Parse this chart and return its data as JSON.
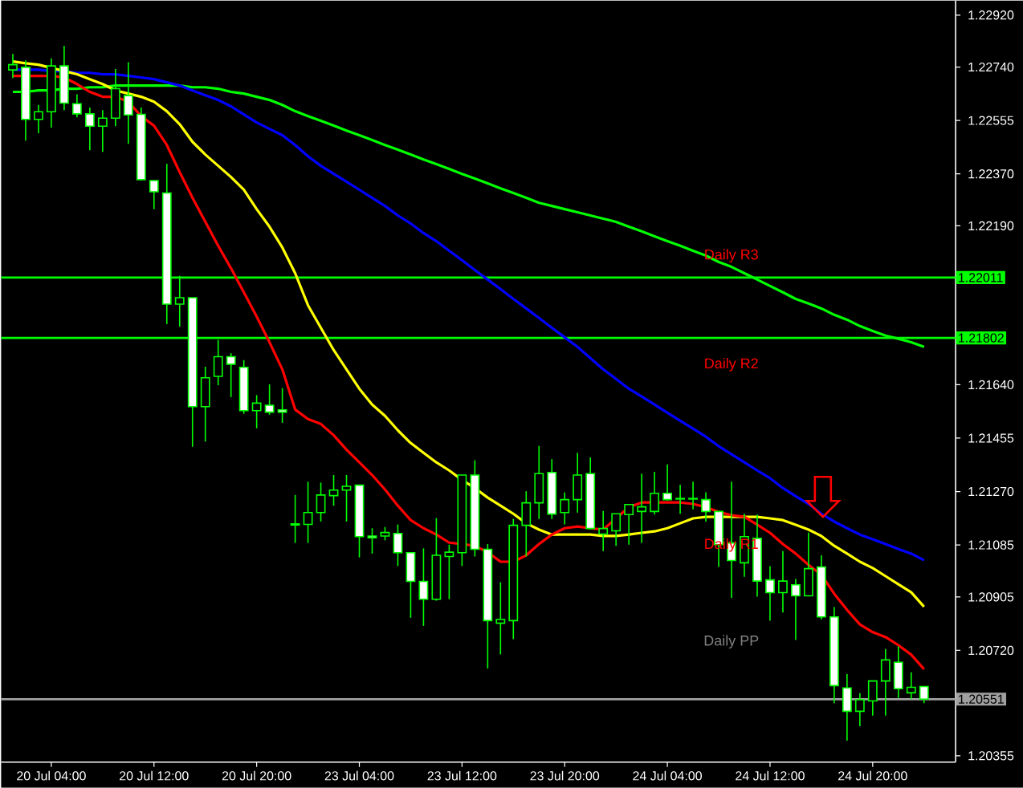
{
  "chart_data": {
    "type": "candlestick",
    "categories": [
      null,
      null,
      null,
      "20 Jul 04:00",
      null,
      null,
      null,
      null,
      null,
      null,
      null,
      "20 Jul 12:00",
      null,
      null,
      null,
      null,
      null,
      null,
      null,
      "20 Jul 20:00",
      null,
      null,
      null,
      null,
      null,
      null,
      null,
      "23 Jul 04:00",
      null,
      null,
      null,
      null,
      null,
      null,
      null,
      "23 Jul 12:00",
      null,
      null,
      null,
      null,
      null,
      null,
      null,
      "23 Jul 20:00",
      null,
      null,
      null,
      null,
      null,
      null,
      null,
      "24 Jul 04:00",
      null,
      null,
      null,
      null,
      null,
      null,
      null,
      "24 Jul 12:00",
      null,
      null,
      null,
      null,
      null,
      null,
      null,
      "24 Jul 20:00",
      null,
      null,
      null,
      null
    ],
    "ohlc": [
      [
        1.2273,
        1.22785,
        1.22702,
        1.22748
      ],
      [
        1.22739,
        1.22763,
        1.22485,
        1.22559
      ],
      [
        1.22559,
        1.22609,
        1.22511,
        1.22585
      ],
      [
        1.22585,
        1.2277,
        1.2253,
        1.22744
      ],
      [
        1.22744,
        1.22813,
        1.22591,
        1.22615
      ],
      [
        1.22613,
        1.22646,
        1.22566,
        1.22578
      ],
      [
        1.22578,
        1.226,
        1.22452,
        1.22535
      ],
      [
        1.22535,
        1.22591,
        1.22446,
        1.22563
      ],
      [
        1.22563,
        1.22733,
        1.22535,
        1.22665
      ],
      [
        1.22641,
        1.22757,
        1.22474,
        1.22574
      ],
      [
        1.22576,
        1.226,
        1.22348,
        1.2235
      ],
      [
        1.22347,
        1.22347,
        1.22248,
        1.22308
      ],
      [
        1.22304,
        1.22405,
        1.2185,
        1.21919
      ],
      [
        1.21919,
        1.22017,
        1.21841,
        1.21941
      ],
      [
        1.21941,
        1.21941,
        1.21425,
        1.21564
      ],
      [
        1.21564,
        1.21702,
        1.21443,
        1.21664
      ],
      [
        1.21669,
        1.21795,
        1.21638,
        1.21737
      ],
      [
        1.21737,
        1.21749,
        1.21597,
        1.21711
      ],
      [
        1.217,
        1.21725,
        1.21539,
        1.2155
      ],
      [
        1.2155,
        1.21604,
        1.21489,
        1.21576
      ],
      [
        1.21569,
        1.21641,
        1.21536,
        1.21545
      ],
      [
        1.21553,
        1.21628,
        1.21508,
        1.21545
      ],
      [
        1.21158,
        1.21258,
        1.21092,
        1.21154
      ],
      [
        1.21156,
        1.21304,
        1.21092,
        1.21197
      ],
      [
        1.21197,
        1.21301,
        1.21166,
        1.21258
      ],
      [
        1.21256,
        1.21327,
        1.21221,
        1.21275
      ],
      [
        1.21275,
        1.21327,
        1.21166,
        1.21288
      ],
      [
        1.21292,
        1.21292,
        1.21042,
        1.21114
      ],
      [
        1.21116,
        1.21143,
        1.21055,
        1.2111
      ],
      [
        1.21116,
        1.21147,
        1.21101,
        1.21128
      ],
      [
        1.21125,
        1.21156,
        1.21012,
        1.21058
      ],
      [
        1.21058,
        1.21058,
        1.20833,
        1.20959
      ],
      [
        1.20959,
        1.21073,
        1.20805,
        1.20897
      ],
      [
        1.20897,
        1.21178,
        1.20892,
        1.21049
      ],
      [
        1.21045,
        1.21086,
        1.20897,
        1.2106
      ],
      [
        1.21058,
        1.21327,
        1.21012,
        1.21327
      ],
      [
        1.21327,
        1.21378,
        1.21045,
        1.2107
      ],
      [
        1.2107,
        1.21088,
        1.20657,
        1.20823
      ],
      [
        1.20814,
        1.20956,
        1.20706,
        1.20827
      ],
      [
        1.20823,
        1.21175,
        1.20759,
        1.21153
      ],
      [
        1.21153,
        1.21271,
        1.21045,
        1.21231
      ],
      [
        1.21231,
        1.21428,
        1.21175,
        1.21332
      ],
      [
        1.21336,
        1.21382,
        1.21175,
        1.21192
      ],
      [
        1.21197,
        1.21267,
        1.21156,
        1.21242
      ],
      [
        1.21242,
        1.21404,
        1.21197,
        1.21327
      ],
      [
        1.21332,
        1.21388,
        1.21138,
        1.21142
      ],
      [
        1.21123,
        1.21203,
        1.21064,
        1.21142
      ],
      [
        1.21134,
        1.21193,
        1.21082,
        1.21193
      ],
      [
        1.2119,
        1.21225,
        1.21086,
        1.21225
      ],
      [
        1.21201,
        1.21332,
        1.21092,
        1.21217
      ],
      [
        1.21201,
        1.21338,
        1.2119,
        1.21264
      ],
      [
        1.21264,
        1.21364,
        1.21238,
        1.21242
      ],
      [
        1.21244,
        1.21293,
        1.21193,
        1.21246
      ],
      [
        1.21246,
        1.21304,
        1.21208,
        1.21244
      ],
      [
        1.21242,
        1.21267,
        1.21166,
        1.21201
      ],
      [
        1.21201,
        1.21201,
        1.21009,
        1.21086
      ],
      [
        1.21092,
        1.21304,
        1.20901,
        1.21031
      ],
      [
        1.21023,
        1.21193,
        1.20975,
        1.21114
      ],
      [
        1.21108,
        1.2119,
        1.20906,
        1.2096
      ],
      [
        1.20964,
        1.21012,
        1.20823,
        1.2092
      ],
      [
        1.2092,
        1.21064,
        1.20851,
        1.2096
      ],
      [
        1.20947,
        1.20967,
        1.20756,
        1.20909
      ],
      [
        1.20909,
        1.21128,
        1.20909,
        1.21003
      ],
      [
        1.21009,
        1.21049,
        1.20827,
        1.20836
      ],
      [
        1.20836,
        1.2087,
        1.20537,
        1.20598
      ],
      [
        1.2059,
        1.20638,
        1.20407,
        1.20509
      ],
      [
        1.20509,
        1.20572,
        1.20457,
        1.20549
      ],
      [
        1.20545,
        1.20614,
        1.20494,
        1.20614
      ],
      [
        1.20614,
        1.20725,
        1.20494,
        1.20687
      ],
      [
        1.20679,
        1.20734,
        1.20555,
        1.20587
      ],
      [
        1.20573,
        1.20644,
        1.20551,
        1.20592
      ],
      [
        1.20595,
        1.20595,
        1.20537,
        1.20551
      ]
    ],
    "series": [
      {
        "type": "line",
        "color": "#00ff00",
        "values": [
          1.22654,
          1.22654,
          1.22659,
          1.22659,
          1.22665,
          1.22665,
          1.2267,
          1.2267,
          1.22676,
          1.22676,
          1.22676,
          1.22676,
          1.22676,
          1.22676,
          1.2267,
          1.2267,
          1.22665,
          1.22654,
          1.22648,
          1.22637,
          1.22626,
          1.22609,
          1.22587,
          1.2257,
          1.22554,
          1.22537,
          1.2252,
          1.22504,
          1.22487,
          1.2247,
          1.22454,
          1.22437,
          1.2242,
          1.22404,
          1.22387,
          1.2237,
          1.22354,
          1.22337,
          1.2232,
          1.22304,
          1.22287,
          1.2227,
          1.22259,
          1.22248,
          1.22237,
          1.22226,
          1.22215,
          1.22204,
          1.22187,
          1.22171,
          1.22154,
          1.22137,
          1.22121,
          1.22104,
          1.22087,
          1.22065,
          1.22048,
          1.22026,
          1.22004,
          1.21982,
          1.2196,
          1.21937,
          1.21921,
          1.21904,
          1.21882,
          1.21865,
          1.21843,
          1.21826,
          1.2181,
          1.21799,
          1.21787,
          1.21771
        ]
      },
      {
        "type": "line",
        "color": "#0000ff",
        "values": [
          1.22731,
          1.22731,
          1.22731,
          1.22726,
          1.22726,
          1.2272,
          1.2272,
          1.22715,
          1.22715,
          1.22709,
          1.22704,
          1.22698,
          1.22687,
          1.22676,
          1.22659,
          1.22642,
          1.22626,
          1.22604,
          1.22576,
          1.22548,
          1.22526,
          1.22504,
          1.2247,
          1.22431,
          1.22398,
          1.2237,
          1.22343,
          1.22315,
          1.22287,
          1.22259,
          1.22226,
          1.22198,
          1.22165,
          1.22137,
          1.22104,
          1.22071,
          1.22037,
          1.22004,
          1.21971,
          1.21937,
          1.21904,
          1.21871,
          1.21837,
          1.21804,
          1.21771,
          1.21732,
          1.21693,
          1.2166,
          1.21626,
          1.21599,
          1.21571,
          1.21543,
          1.21515,
          1.21488,
          1.2146,
          1.21427,
          1.21399,
          1.21371,
          1.21343,
          1.21316,
          1.21282,
          1.21254,
          1.21227,
          1.21193,
          1.21166,
          1.21143,
          1.21121,
          1.21105,
          1.21088,
          1.21071,
          1.21055,
          1.21032
        ]
      },
      {
        "type": "line",
        "color": "#ffff00",
        "values": [
          1.22759,
          1.22753,
          1.22748,
          1.22737,
          1.22726,
          1.22715,
          1.22698,
          1.22681,
          1.22659,
          1.22648,
          1.22637,
          1.2262,
          1.22587,
          1.22542,
          1.22481,
          1.22437,
          1.22398,
          1.22359,
          1.22315,
          1.22248,
          1.22187,
          1.22115,
          1.22026,
          1.21915,
          1.21837,
          1.2176,
          1.21693,
          1.21626,
          1.21571,
          1.21532,
          1.21482,
          1.21438,
          1.21404,
          1.21371,
          1.21343,
          1.2131,
          1.21282,
          1.21249,
          1.21221,
          1.21193,
          1.2116,
          1.21138,
          1.21121,
          1.21121,
          1.21121,
          1.21121,
          1.21116,
          1.21116,
          1.21121,
          1.21127,
          1.21132,
          1.21143,
          1.2116,
          1.21177,
          1.21182,
          1.21182,
          1.21182,
          1.21182,
          1.21182,
          1.21177,
          1.21171,
          1.21155,
          1.21138,
          1.21116,
          1.21082,
          1.21055,
          1.21027,
          1.21005,
          1.20977,
          1.20949,
          1.20921,
          1.20871
        ]
      },
      {
        "type": "line",
        "color": "#ff0000",
        "values": [
          1.22709,
          1.22709,
          1.22709,
          1.22709,
          1.22704,
          1.22681,
          1.22654,
          1.22637,
          1.22637,
          1.2262,
          1.2257,
          1.22537,
          1.2247,
          1.22376,
          1.22287,
          1.22204,
          1.22121,
          1.22043,
          1.2196,
          1.21876,
          1.21787,
          1.21693,
          1.21554,
          1.21521,
          1.21504,
          1.21465,
          1.21415,
          1.21371,
          1.21327,
          1.21277,
          1.21221,
          1.21171,
          1.21143,
          1.21121,
          1.21093,
          1.21088,
          1.21082,
          1.2106,
          1.21027,
          1.21027,
          1.21049,
          1.21088,
          1.21121,
          1.21143,
          1.21149,
          1.21143,
          1.21138,
          1.21177,
          1.21216,
          1.21232,
          1.21232,
          1.21232,
          1.21232,
          1.21227,
          1.21216,
          1.21199,
          1.21188,
          1.21182,
          1.21155,
          1.21127,
          1.21088,
          1.21055,
          1.21016,
          1.20982,
          1.20916,
          1.2086,
          1.2081,
          1.20783,
          1.20766,
          1.20738,
          1.20705,
          1.20655
        ]
      }
    ],
    "ylim": [
      1.20333,
      1.2297
    ],
    "yticks": [
      {
        "value": 1.2292,
        "label": "1.22920"
      },
      {
        "value": 1.2274,
        "label": "1.22740"
      },
      1.22555,
      {
        "value": 1.2237,
        "label": "1.22370"
      },
      {
        "value": 1.2219,
        "label": "1.22190"
      },
      {
        "value": 1.2164,
        "label": "1.21640"
      },
      1.21455,
      {
        "value": 1.2127,
        "label": "1.21270"
      },
      1.21085,
      1.20905,
      {
        "value": 1.2072,
        "label": "1.20720"
      },
      1.20355
    ],
    "ref_lines": [
      {
        "axis": "y",
        "value": 1.22011,
        "label": "1.22011",
        "color": "#00ff00"
      },
      {
        "axis": "y",
        "value": 1.21802,
        "label": "1.21802",
        "color": "#00ff00"
      },
      {
        "axis": "y",
        "value": 1.20551,
        "label": "1.20551",
        "color": "#a0a0a0"
      }
    ],
    "annotations": [
      "Daily R3",
      "Daily R2",
      "Daily R1",
      "Daily PP"
    ]
  }
}
